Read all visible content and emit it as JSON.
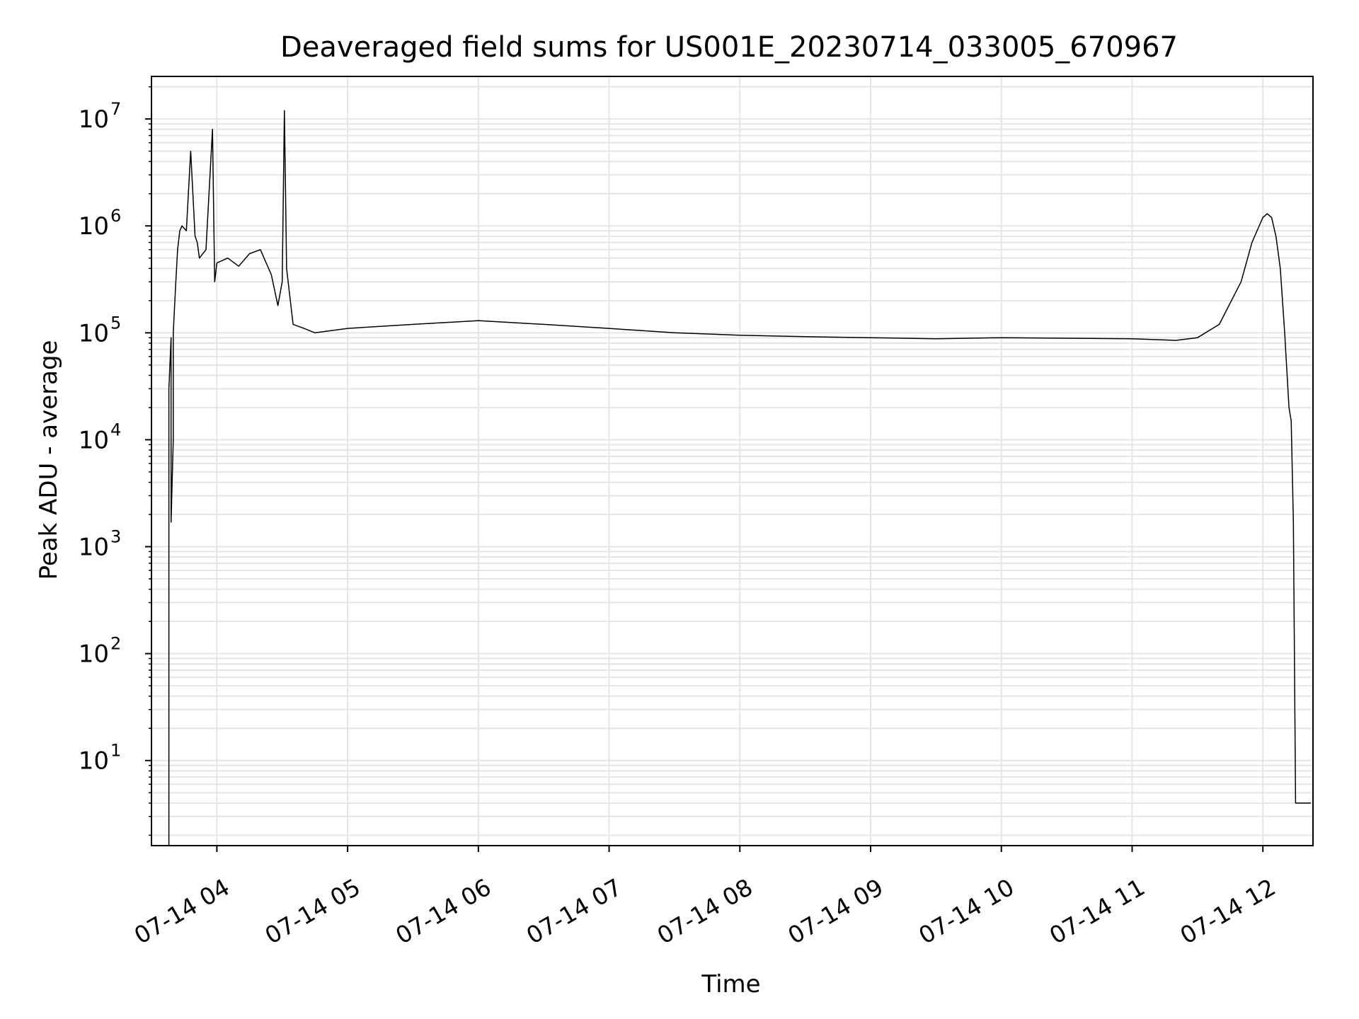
{
  "chart_data": {
    "type": "line",
    "title": "Deaveraged field sums for US001E_20230714_033005_670967",
    "xlabel": "Time",
    "ylabel": "Peak ADU - average",
    "yscale": "log",
    "grid": true,
    "line_color": "#000000",
    "grid_color": "#e6e6e6",
    "xlim": [
      "2023-07-14 03:30",
      "2023-07-14 12:23"
    ],
    "ylim": [
      1.6,
      25000000
    ],
    "x_ticks": [
      "2023-07-14 04:00",
      "2023-07-14 05:00",
      "2023-07-14 06:00",
      "2023-07-14 07:00",
      "2023-07-14 08:00",
      "2023-07-14 09:00",
      "2023-07-14 10:00",
      "2023-07-14 11:00",
      "2023-07-14 12:00"
    ],
    "x_tick_labels": [
      "07-14 04",
      "07-14 05",
      "07-14 06",
      "07-14 07",
      "07-14 08",
      "07-14 09",
      "07-14 10",
      "07-14 11",
      "07-14 12"
    ],
    "y_ticks": [
      10,
      100,
      1000,
      10000,
      100000,
      1000000,
      10000000
    ],
    "y_tick_labels": [
      {
        "base": "10",
        "exp": "1"
      },
      {
        "base": "10",
        "exp": "2"
      },
      {
        "base": "10",
        "exp": "3"
      },
      {
        "base": "10",
        "exp": "4"
      },
      {
        "base": "10",
        "exp": "5"
      },
      {
        "base": "10",
        "exp": "6"
      },
      {
        "base": "10",
        "exp": "7"
      }
    ],
    "series": [
      {
        "x": [
          "2023-07-14 03:38",
          "2023-07-14 03:38",
          "2023-07-14 03:39",
          "2023-07-14 03:39",
          "2023-07-14 03:40",
          "2023-07-14 03:40",
          "2023-07-14 03:41",
          "2023-07-14 03:42",
          "2023-07-14 03:43",
          "2023-07-14 03:44",
          "2023-07-14 03:46",
          "2023-07-14 03:48",
          "2023-07-14 03:50",
          "2023-07-14 03:51",
          "2023-07-14 03:52",
          "2023-07-14 03:55",
          "2023-07-14 03:58",
          "2023-07-14 03:59",
          "2023-07-14 04:00",
          "2023-07-14 04:05",
          "2023-07-14 04:10",
          "2023-07-14 04:15",
          "2023-07-14 04:20",
          "2023-07-14 04:25",
          "2023-07-14 04:28",
          "2023-07-14 04:30",
          "2023-07-14 04:31",
          "2023-07-14 04:32",
          "2023-07-14 04:35",
          "2023-07-14 04:40",
          "2023-07-14 04:45",
          "2023-07-14 05:00",
          "2023-07-14 05:30",
          "2023-07-14 06:00",
          "2023-07-14 06:30",
          "2023-07-14 07:00",
          "2023-07-14 07:30",
          "2023-07-14 08:00",
          "2023-07-14 08:30",
          "2023-07-14 09:00",
          "2023-07-14 09:30",
          "2023-07-14 10:00",
          "2023-07-14 10:30",
          "2023-07-14 11:00",
          "2023-07-14 11:20",
          "2023-07-14 11:30",
          "2023-07-14 11:40",
          "2023-07-14 11:50",
          "2023-07-14 11:55",
          "2023-07-14 12:00",
          "2023-07-14 12:02",
          "2023-07-14 12:04",
          "2023-07-14 12:06",
          "2023-07-14 12:08",
          "2023-07-14 12:10",
          "2023-07-14 12:12",
          "2023-07-14 12:13",
          "2023-07-14 12:14",
          "2023-07-14 12:15",
          "2023-07-14 12:16",
          "2023-07-14 12:17",
          "2023-07-14 12:22"
        ],
        "y": [
          1.6,
          30000,
          90000,
          1700,
          10000,
          100000,
          260000,
          600000,
          900000,
          1000000,
          900000,
          5000000,
          800000,
          700000,
          500000,
          600000,
          8000000,
          300000,
          450000,
          500000,
          420000,
          550000,
          600000,
          350000,
          180000,
          300000,
          12000000,
          400000,
          120000,
          110000,
          100000,
          110000,
          120000,
          130000,
          120000,
          110000,
          100000,
          95000,
          92000,
          90000,
          88000,
          90000,
          89000,
          88000,
          85000,
          90000,
          120000,
          300000,
          700000,
          1200000,
          1300000,
          1200000,
          800000,
          400000,
          100000,
          20000,
          15000,
          1700,
          4,
          4,
          4,
          4
        ]
      }
    ]
  }
}
